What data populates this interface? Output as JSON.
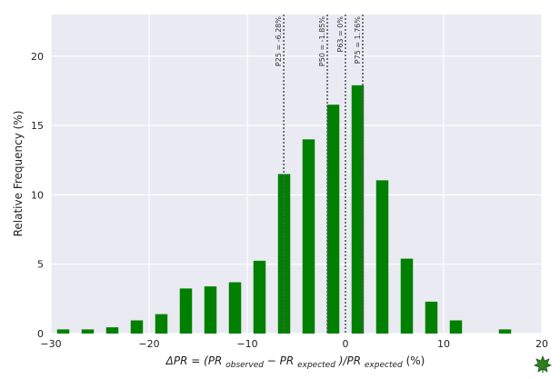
{
  "chart_data": {
    "type": "bar",
    "title": "",
    "xlabel": "ΔPR = (PR_observed − PR_expected)/PR_expected (%)",
    "xlabel_parts": {
      "prefix": "ΔPR = (PR",
      "sub1": "observed",
      "mid": " − PR",
      "sub2": "expected",
      "mid2": ")/PR",
      "sub3": "expected",
      "suffix": " (%)"
    },
    "ylabel": "Relative Frequency (%)",
    "xlim": [
      -30,
      20
    ],
    "ylim": [
      0,
      23
    ],
    "xticks": [
      -30,
      -20,
      -10,
      0,
      10,
      20
    ],
    "yticks": [
      0,
      5,
      10,
      15,
      20
    ],
    "grid": true,
    "bar_color": "#008000",
    "bin_width": 2.5,
    "bins": [
      {
        "x": -28.75,
        "value": 0.3
      },
      {
        "x": -26.25,
        "value": 0.3
      },
      {
        "x": -23.75,
        "value": 0.45
      },
      {
        "x": -21.25,
        "value": 0.95
      },
      {
        "x": -18.75,
        "value": 1.4
      },
      {
        "x": -16.25,
        "value": 3.25
      },
      {
        "x": -13.75,
        "value": 3.4
      },
      {
        "x": -11.25,
        "value": 3.7
      },
      {
        "x": -8.75,
        "value": 5.25
      },
      {
        "x": -6.25,
        "value": 11.5
      },
      {
        "x": -3.75,
        "value": 14.0
      },
      {
        "x": -1.25,
        "value": 16.5
      },
      {
        "x": 1.25,
        "value": 17.9
      },
      {
        "x": 3.75,
        "value": 11.05
      },
      {
        "x": 6.25,
        "value": 5.4
      },
      {
        "x": 8.75,
        "value": 2.3
      },
      {
        "x": 11.25,
        "value": 0.95
      },
      {
        "x": 16.25,
        "value": 0.3
      }
    ],
    "percentile_lines": [
      {
        "x": -6.28,
        "label": "P25 = -6.28%"
      },
      {
        "x": -1.85,
        "label": "P50 = -1.85%"
      },
      {
        "x": 0.0,
        "label": "P63 = 0%"
      },
      {
        "x": 1.76,
        "label": "P75 = 1.76%"
      }
    ],
    "colors": {
      "plot_background": "#eaeaf2",
      "grid": "#ffffff",
      "bars": "#008000",
      "lines": "#555566"
    }
  },
  "logo": {
    "icon": "green-maple-leaf-logo-icon"
  }
}
